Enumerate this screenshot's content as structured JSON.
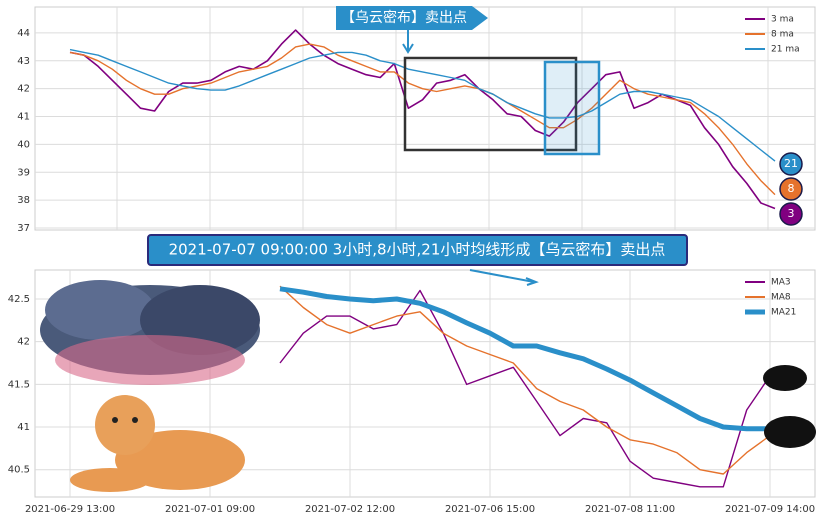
{
  "chart_data": [
    {
      "type": "line",
      "ylim": [
        36.93,
        44.93
      ],
      "yticks": [
        37,
        38,
        39,
        40,
        41,
        42,
        43,
        44
      ],
      "grid": true,
      "legend": "upper right",
      "series": [
        {
          "name": "3 ma",
          "color": "#800080",
          "width": 1.6,
          "values": [
            43.3,
            43.2,
            42.8,
            42.3,
            41.8,
            41.3,
            41.2,
            41.9,
            42.2,
            42.2,
            42.3,
            42.6,
            42.8,
            42.7,
            43.0,
            43.6,
            44.1,
            43.6,
            43.2,
            42.9,
            42.7,
            42.5,
            42.4,
            42.9,
            41.3,
            41.6,
            42.2,
            42.3,
            42.5,
            42.0,
            41.6,
            41.1,
            41.0,
            40.5,
            40.3,
            40.8,
            41.5,
            42.0,
            42.5,
            42.6,
            41.3,
            41.5,
            41.8,
            41.6,
            41.4,
            40.6,
            40.0,
            39.2,
            38.6,
            37.9,
            37.7
          ]
        },
        {
          "name": "8 ma",
          "color": "#e5722c",
          "width": 1.4,
          "values": [
            43.3,
            43.2,
            43.0,
            42.7,
            42.3,
            42.0,
            41.8,
            41.8,
            42.0,
            42.1,
            42.2,
            42.4,
            42.6,
            42.7,
            42.8,
            43.1,
            43.5,
            43.6,
            43.5,
            43.2,
            43.0,
            42.8,
            42.6,
            42.6,
            42.2,
            42.0,
            41.9,
            42.0,
            42.1,
            42.0,
            41.8,
            41.5,
            41.2,
            40.9,
            40.6,
            40.6,
            40.9,
            41.3,
            41.8,
            42.3,
            42.0,
            41.8,
            41.7,
            41.6,
            41.5,
            41.1,
            40.6,
            40.0,
            39.3,
            38.7,
            38.2
          ]
        },
        {
          "name": "21 ma",
          "color": "#2a8fc9",
          "width": 1.4,
          "values": [
            43.4,
            43.3,
            43.2,
            43.0,
            42.8,
            42.6,
            42.4,
            42.2,
            42.1,
            42.0,
            41.95,
            41.95,
            42.1,
            42.3,
            42.5,
            42.7,
            42.9,
            43.1,
            43.2,
            43.3,
            43.3,
            43.2,
            43.0,
            42.9,
            42.7,
            42.6,
            42.5,
            42.4,
            42.3,
            42.0,
            41.8,
            41.5,
            41.3,
            41.1,
            40.95,
            40.95,
            41.0,
            41.2,
            41.5,
            41.8,
            41.9,
            41.9,
            41.8,
            41.7,
            41.6,
            41.3,
            41.0,
            40.6,
            40.2,
            39.8,
            39.4
          ]
        }
      ],
      "annotations": [
        "【乌云密布】卖出点"
      ],
      "end_labels": [
        "21",
        "8",
        "3"
      ]
    },
    {
      "type": "line",
      "ylim": [
        40.18,
        42.84
      ],
      "yticks": [
        40.5,
        41.0,
        41.5,
        42.0,
        42.5
      ],
      "grid": true,
      "legend": "upper right",
      "categories": [
        "2021-06-29 13:00",
        null,
        null,
        null,
        null,
        null,
        "2021-07-01 09:00",
        null,
        null,
        null,
        null,
        null,
        "2021-07-02 12:00",
        null,
        null,
        null,
        null,
        null,
        "2021-07-06 15:00",
        null,
        null,
        null,
        null,
        null,
        "2021-07-08 11:00",
        null,
        null,
        null,
        null,
        null,
        "2021-07-09 14:00"
      ],
      "series": [
        {
          "name": "MA3",
          "color": "#800080",
          "width": 1.4,
          "values": [
            null,
            null,
            null,
            null,
            null,
            null,
            null,
            null,
            null,
            41.75,
            42.1,
            42.3,
            42.3,
            42.15,
            42.2,
            42.6,
            42.1,
            41.5,
            41.6,
            41.7,
            41.3,
            40.9,
            41.1,
            41.05,
            40.6,
            40.4,
            40.35,
            40.3,
            40.3,
            41.2,
            41.6
          ]
        },
        {
          "name": "MA8",
          "color": "#e5722c",
          "width": 1.4,
          "values": [
            null,
            null,
            null,
            null,
            null,
            null,
            null,
            null,
            null,
            42.65,
            42.4,
            42.2,
            42.1,
            42.2,
            42.3,
            42.35,
            42.1,
            41.95,
            41.85,
            41.75,
            41.45,
            41.3,
            41.2,
            41.0,
            40.85,
            40.8,
            40.7,
            40.5,
            40.45,
            40.7,
            40.9
          ]
        },
        {
          "name": "MA21",
          "color": "#2a8fc9",
          "width": 5,
          "values": [
            null,
            null,
            null,
            null,
            null,
            null,
            null,
            null,
            null,
            42.62,
            42.58,
            42.53,
            42.5,
            42.48,
            42.5,
            42.45,
            42.35,
            42.22,
            42.1,
            41.95,
            41.95,
            41.87,
            41.8,
            41.68,
            41.55,
            41.4,
            41.25,
            41.1,
            41.0,
            40.98,
            40.98
          ]
        }
      ],
      "annotations": [
        "2021-07-07 09:00:00 3小时,8小时,21小时均线形成【乌云密布】卖出点"
      ]
    }
  ]
}
